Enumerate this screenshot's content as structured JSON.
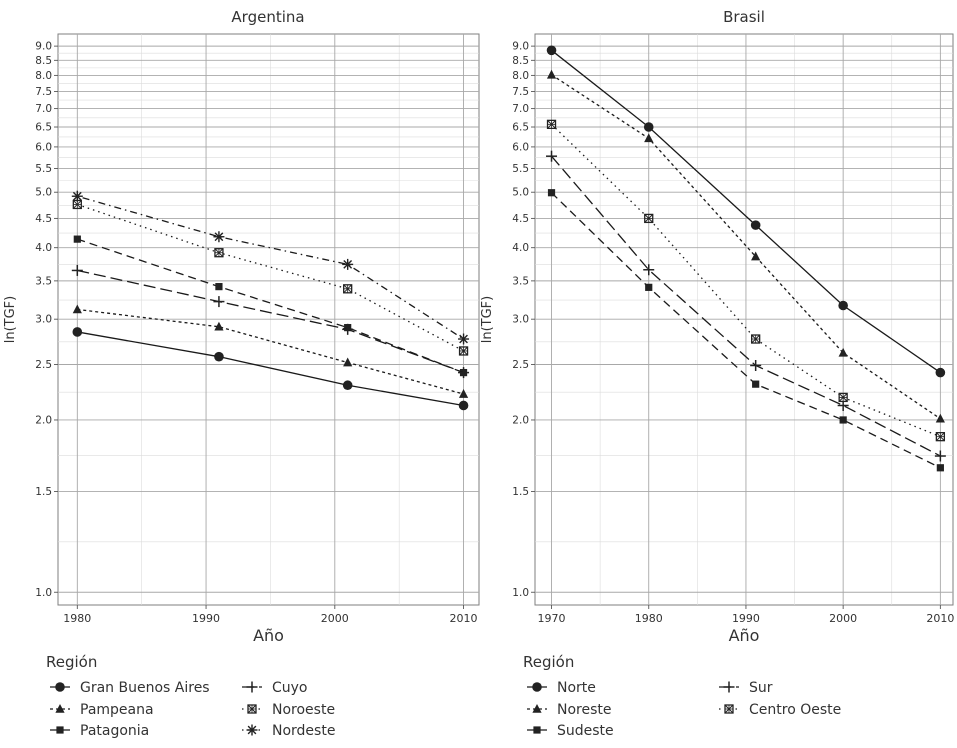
{
  "y_axis_label": "ln(TGF)",
  "x_axis_label": "Año",
  "legend_title": "Región",
  "chart_data": [
    {
      "type": "line",
      "title": "Argentina",
      "xlabel": "Año",
      "ylabel": "ln(TGF)",
      "x_ticks": [
        1980,
        1990,
        2000,
        2010
      ],
      "y_ticks": [
        "1.0",
        "1.5",
        "2.0",
        "2.5",
        "3.0",
        "3.5",
        "4.0",
        "4.5",
        "5.0",
        "5.5",
        "6.0",
        "6.5",
        "7.0",
        "7.5",
        "8.0",
        "8.5",
        "9.0"
      ],
      "y_scale": "log",
      "grid": true,
      "legend_position": "bottom-left",
      "x": [
        1980,
        1991,
        2001,
        2010
      ],
      "series": [
        {
          "name": "Gran Buenos Aires",
          "marker": "circle",
          "dash": "solid",
          "values": [
            2.85,
            2.58,
            2.3,
            2.12
          ]
        },
        {
          "name": "Pampeana",
          "marker": "triangle",
          "dash": "short",
          "values": [
            3.12,
            2.91,
            2.52,
            2.22
          ]
        },
        {
          "name": "Patagonia",
          "marker": "square",
          "dash": "long",
          "values": [
            4.14,
            3.42,
            2.9,
            2.42
          ]
        },
        {
          "name": "Cuyo",
          "marker": "plus",
          "dash": "longdash",
          "values": [
            3.65,
            3.22,
            2.88,
            2.42
          ]
        },
        {
          "name": "Noroeste",
          "marker": "boxx",
          "dash": "dot",
          "values": [
            4.76,
            3.92,
            3.39,
            2.64
          ]
        },
        {
          "name": "Nordeste",
          "marker": "star",
          "dash": "dotdash",
          "values": [
            4.92,
            4.18,
            3.74,
            2.77
          ]
        }
      ]
    },
    {
      "type": "line",
      "title": "Brasil",
      "xlabel": "Año",
      "ylabel": "ln(TGF)",
      "x_ticks": [
        1970,
        1980,
        1990,
        2000,
        2010
      ],
      "y_ticks": [
        "1.0",
        "1.5",
        "2.0",
        "2.5",
        "3.0",
        "3.5",
        "4.0",
        "4.5",
        "5.0",
        "5.5",
        "6.0",
        "6.5",
        "7.0",
        "7.5",
        "8.0",
        "8.5",
        "9.0"
      ],
      "y_scale": "log",
      "grid": true,
      "legend_position": "bottom-left",
      "x": [
        1970,
        1980,
        1991,
        2000,
        2010
      ],
      "series": [
        {
          "name": "Norte",
          "marker": "circle",
          "dash": "solid",
          "values": [
            8.85,
            6.5,
            4.38,
            3.17,
            2.42
          ]
        },
        {
          "name": "Noreste",
          "marker": "triangle",
          "dash": "short",
          "values": [
            8.02,
            6.21,
            3.86,
            2.62,
            2.01
          ]
        },
        {
          "name": "Sudeste",
          "marker": "square",
          "dash": "long",
          "values": [
            4.99,
            3.41,
            2.31,
            2.0,
            1.65
          ]
        },
        {
          "name": "Sur",
          "marker": "plus",
          "dash": "longdash",
          "values": [
            5.78,
            3.66,
            2.49,
            2.12,
            1.73
          ]
        },
        {
          "name": "Centro Oeste",
          "marker": "boxx",
          "dash": "dot",
          "values": [
            6.57,
            4.5,
            2.77,
            2.19,
            1.87
          ]
        }
      ]
    }
  ]
}
